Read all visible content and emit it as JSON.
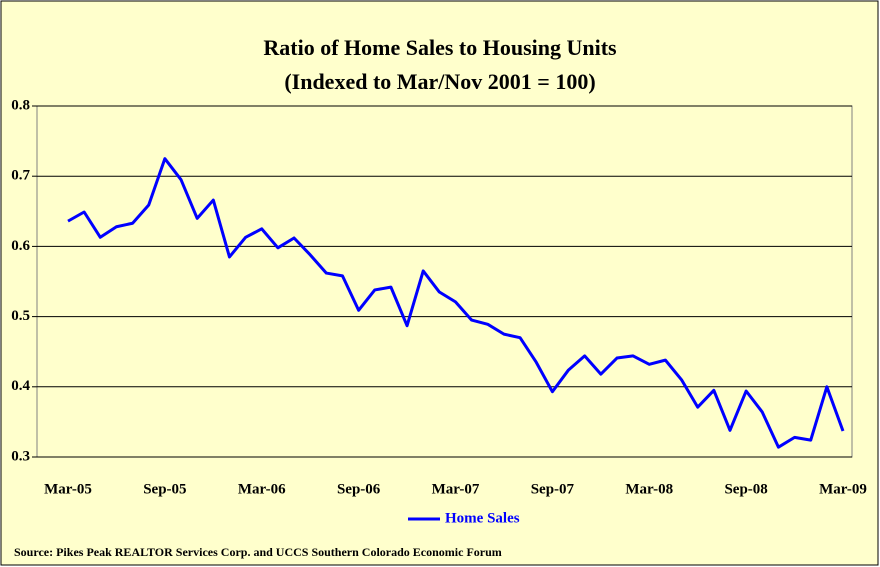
{
  "chart_data": {
    "type": "line",
    "title": "Ratio of Home Sales to Housing Units",
    "subtitle": "(Indexed to Mar/Nov 2001 = 100)",
    "source": "Source: Pikes Peak REALTOR Services Corp. and UCCS Southern Colorado Economic Forum",
    "categories": [
      "Mar-05",
      null,
      null,
      null,
      null,
      null,
      "Sep-05",
      null,
      null,
      null,
      null,
      null,
      "Mar-06",
      null,
      null,
      null,
      null,
      null,
      "Sep-06",
      null,
      null,
      null,
      null,
      null,
      "Mar-07",
      null,
      null,
      null,
      null,
      null,
      "Sep-07",
      null,
      null,
      null,
      null,
      null,
      "Mar-08",
      null,
      null,
      null,
      null,
      null,
      "Sep-08",
      null,
      null,
      null,
      null,
      null,
      "Mar-09"
    ],
    "series": [
      {
        "name": "Home Sales",
        "color": "#0000ff",
        "values": [
          0.636,
          0.649,
          0.613,
          0.628,
          0.633,
          0.659,
          0.725,
          0.695,
          0.64,
          0.666,
          0.585,
          0.613,
          0.625,
          0.598,
          0.612,
          0.588,
          0.562,
          0.558,
          0.509,
          0.538,
          0.542,
          0.487,
          0.565,
          0.535,
          0.521,
          0.495,
          0.489,
          0.475,
          0.47,
          0.435,
          0.393,
          0.424,
          0.444,
          0.418,
          0.441,
          0.444,
          0.432,
          0.438,
          0.41,
          0.371,
          0.395,
          0.338,
          0.394,
          0.364,
          0.314,
          0.328,
          0.324,
          0.4,
          0.337
        ]
      }
    ],
    "ylim": [
      0.3,
      0.8
    ],
    "yticks": [
      0.3,
      0.4,
      0.5,
      0.6,
      0.7,
      0.8
    ],
    "grid": true,
    "legend": "bottom"
  }
}
